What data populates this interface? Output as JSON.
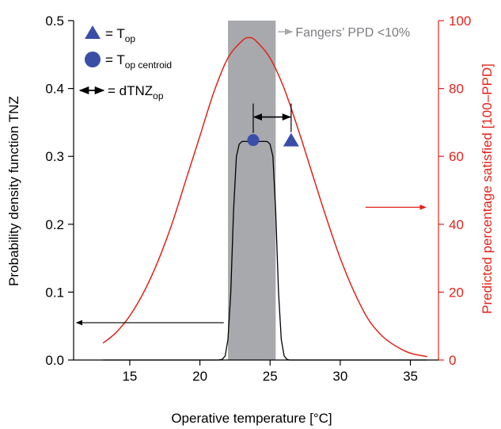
{
  "chart_data": {
    "type": "line",
    "title": "",
    "xlabel": "Operative temperature [°C]",
    "ylabel": "Probability density function TNZ",
    "y2label": "Predicted percentage satisfied [100–PPD]",
    "xlim": [
      11,
      37
    ],
    "ylim": [
      0,
      0.5
    ],
    "y2lim": [
      0,
      100
    ],
    "x_ticks": [
      15,
      20,
      25,
      30,
      35
    ],
    "y_ticks": [
      0.0,
      0.1,
      0.2,
      0.3,
      0.4,
      0.5
    ],
    "y2_ticks": [
      0,
      20,
      40,
      60,
      80,
      100
    ],
    "x_tick_labels": [
      "15",
      "20",
      "25",
      "30",
      "35"
    ],
    "y_tick_labels": [
      "0.0",
      "0.1",
      "0.2",
      "0.3",
      "0.4",
      "0.5"
    ],
    "y2_tick_labels": [
      "0",
      "20",
      "40",
      "60",
      "80",
      "100"
    ],
    "shaded_band": {
      "x0": 22.0,
      "x1": 25.4,
      "label": "Fangers’ PPD <10%",
      "color": "#a7a9ac"
    },
    "series": [
      {
        "axis": "left",
        "color": "#000000",
        "x": [
          13.1,
          21.3,
          21.6,
          21.8,
          22.0,
          22.2,
          22.4,
          22.6,
          22.8,
          23.0,
          24.8,
          25.0,
          25.2,
          25.4,
          25.6,
          25.8,
          26.0,
          26.2,
          26.4,
          36.2
        ],
        "y": [
          0.0,
          0.0,
          0.001,
          0.006,
          0.03,
          0.1,
          0.22,
          0.3,
          0.318,
          0.322,
          0.322,
          0.318,
          0.3,
          0.22,
          0.1,
          0.03,
          0.006,
          0.001,
          0.0,
          0.0
        ]
      },
      {
        "axis": "right",
        "color": "#e2231a",
        "x": [
          13.1,
          14,
          15,
          16,
          17,
          18,
          19,
          20,
          21,
          22,
          23,
          23.5,
          24,
          25,
          26,
          27,
          28,
          29,
          30,
          31,
          32,
          33,
          34,
          35,
          36.2
        ],
        "y": [
          5,
          8,
          13,
          20,
          29,
          40,
          53,
          66,
          79,
          89,
          94,
          95,
          94,
          89,
          80,
          68,
          55,
          42,
          30,
          20,
          12,
          7,
          4,
          2,
          1
        ]
      }
    ],
    "markers": [
      {
        "shape": "circle",
        "x": 23.8,
        "y": 0.324,
        "color": "#3a4ea8"
      },
      {
        "shape": "triangle",
        "x": 26.5,
        "y": 0.324,
        "color": "#3a4ea8"
      }
    ],
    "dtnz_arrow": {
      "x0": 23.8,
      "x1": 26.5,
      "y": 0.358,
      "color": "#000000"
    },
    "side_arrows": [
      {
        "direction": "left",
        "color": "#000000",
        "from_x": 21.7,
        "to_x": 11.2,
        "y": 0.055
      },
      {
        "direction": "right",
        "color": "#e2231a",
        "from_x": 31.8,
        "to_x": 36.1,
        "y": 0.225
      }
    ],
    "legend": [
      {
        "symbol": "triangle",
        "label": "= T",
        "sub": "op"
      },
      {
        "symbol": "circle",
        "label": "= T",
        "sub": "op centroid"
      },
      {
        "symbol": "double-arrow",
        "label": "= dTNZ",
        "sub": "op"
      }
    ],
    "legend_placement": "top-left",
    "grid": false,
    "colors": {
      "left_axis": "#000000",
      "right_axis": "#e2231a",
      "marker": "#3a4ea8",
      "band": "#a7a9ac",
      "band_label": "#7a7c80"
    }
  }
}
